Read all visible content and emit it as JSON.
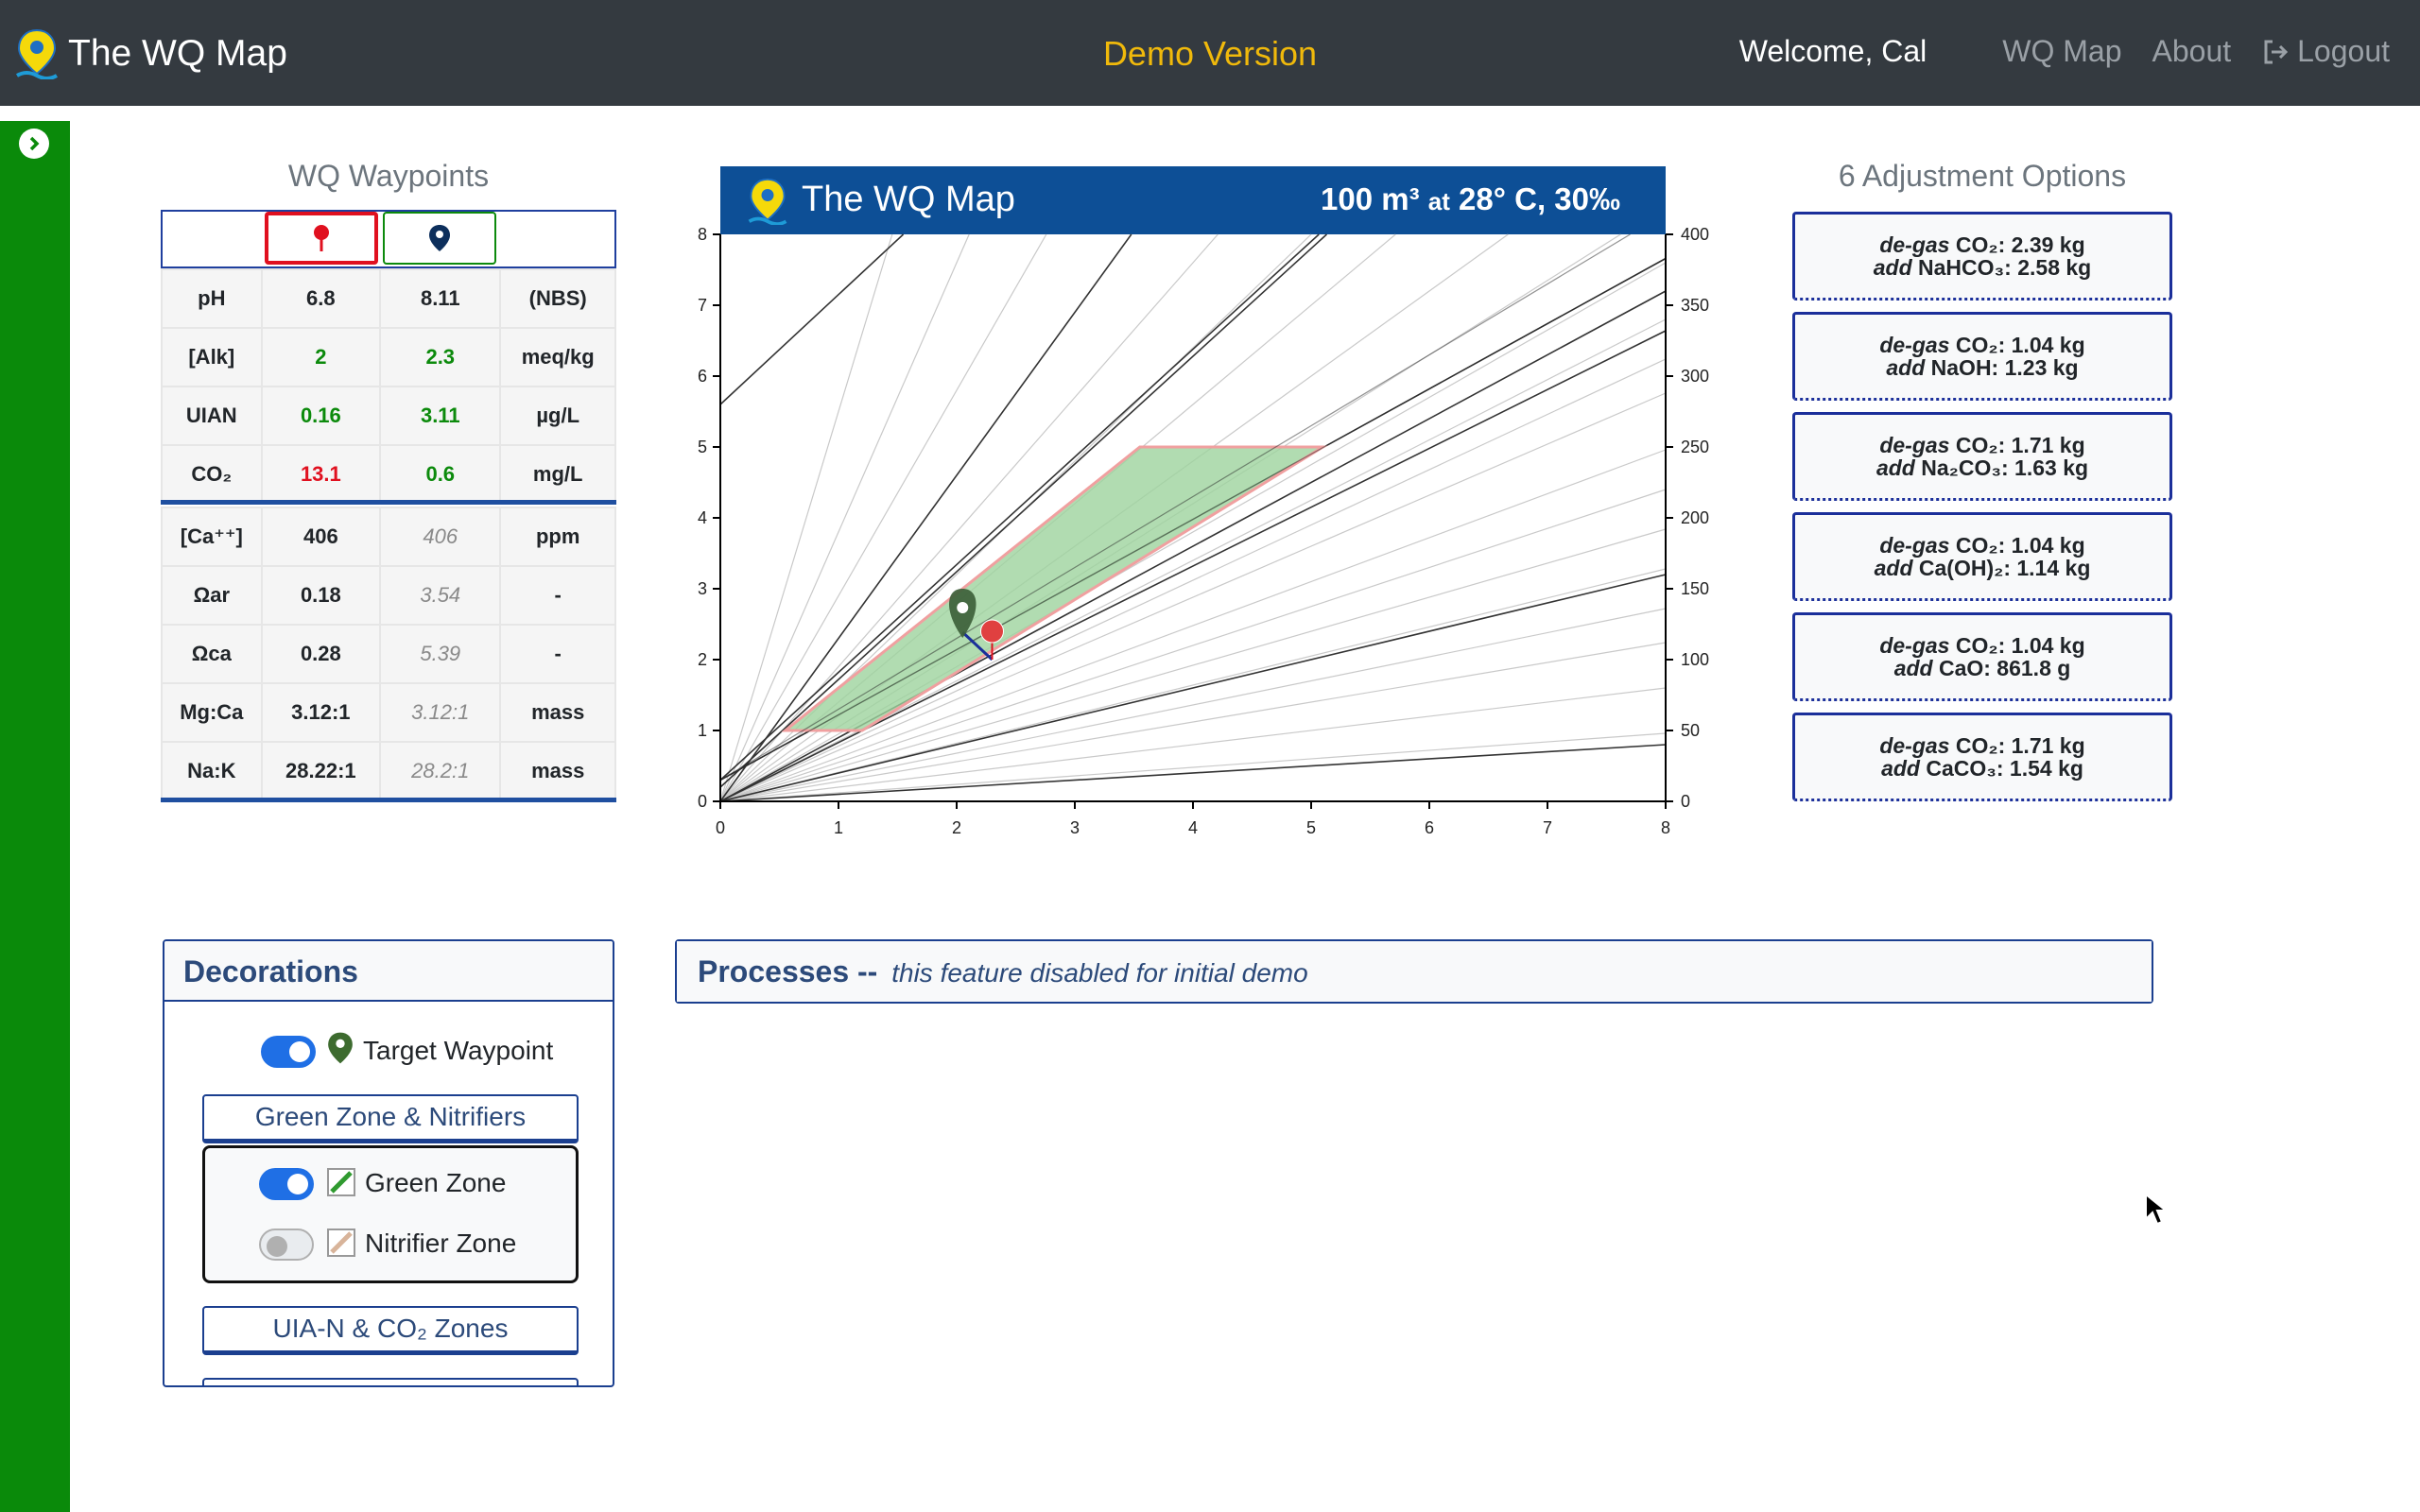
{
  "navbar": {
    "brand": "The WQ Map",
    "center": "Demo Version",
    "welcome": "Welcome, Cal",
    "links": [
      "WQ Map",
      "About",
      "Logout"
    ]
  },
  "waypoints": {
    "title": "WQ Waypoints",
    "rows": [
      {
        "label": "pH",
        "current": "6.8",
        "target": "8.11",
        "unit": "(NBS)"
      },
      {
        "label": "[Alk]",
        "current": "2",
        "target": "2.3",
        "unit": "meq/kg"
      },
      {
        "label": "UIAN",
        "current": "0.16",
        "target": "3.11",
        "unit": "µg/L"
      },
      {
        "label": "CO₂",
        "current": "13.1",
        "target": "0.6",
        "unit": "mg/L"
      },
      {
        "label": "[Ca⁺⁺]",
        "current": "406",
        "target": "406",
        "unit": "ppm"
      },
      {
        "label": "Ωar",
        "current": "0.18",
        "target": "3.54",
        "unit": "-"
      },
      {
        "label": "Ωca",
        "current": "0.28",
        "target": "5.39",
        "unit": "-"
      },
      {
        "label": "Mg:Ca",
        "current": "3.12:1",
        "target": "3.12:1",
        "unit": "mass"
      },
      {
        "label": "Na:K",
        "current": "28.22:1",
        "target": "28.2:1",
        "unit": "mass"
      }
    ]
  },
  "chart": {
    "title": "The WQ Map",
    "volume": "100 m³",
    "at": "at",
    "conditions": "28° C, 30‰",
    "x_ticks": [
      "0",
      "1",
      "2",
      "3",
      "4",
      "5",
      "6",
      "7",
      "8"
    ],
    "y_left_ticks": [
      "0",
      "1",
      "2",
      "3",
      "4",
      "5",
      "6",
      "7",
      "8"
    ],
    "y_right_ticks": [
      "0",
      "50",
      "100",
      "150",
      "200",
      "250",
      "300",
      "350",
      "400"
    ]
  },
  "chart_data": {
    "type": "scatter",
    "title": "The WQ Map",
    "xlabel": "",
    "ylabel": "",
    "xlim": [
      0,
      8
    ],
    "ylim": [
      0,
      8
    ],
    "y2lim": [
      0,
      400
    ],
    "green_zone": [
      [
        0.55,
        1.0
      ],
      [
        1.2,
        1.0
      ],
      [
        5.1,
        5.0
      ],
      [
        3.55,
        5.0
      ]
    ],
    "waypoints": [
      {
        "role": "current",
        "x": 2.3,
        "y": 2.4
      },
      {
        "role": "target",
        "x": 2.05,
        "y": 2.6
      }
    ]
  },
  "adjustments": {
    "title": "6 Adjustment Options",
    "options": [
      {
        "degas": "de-gas",
        "co2": "CO₂: 2.39 kg",
        "add": "add",
        "chem": "NaHCO₃: 2.58 kg"
      },
      {
        "degas": "de-gas",
        "co2": "CO₂: 1.04 kg",
        "add": "add",
        "chem": "NaOH: 1.23 kg"
      },
      {
        "degas": "de-gas",
        "co2": "CO₂: 1.71 kg",
        "add": "add",
        "chem": "Na₂CO₃: 1.63 kg"
      },
      {
        "degas": "de-gas",
        "co2": "CO₂: 1.04 kg",
        "add": "add",
        "chem": "Ca(OH)₂: 1.14 kg"
      },
      {
        "degas": "de-gas",
        "co2": "CO₂: 1.04 kg",
        "add": "add",
        "chem": "CaO: 861.8 g"
      },
      {
        "degas": "de-gas",
        "co2": "CO₂: 1.71 kg",
        "add": "add",
        "chem": "CaCO₃: 1.54 kg"
      }
    ]
  },
  "decorations": {
    "title": "Decorations",
    "target_waypoint": "Target Waypoint",
    "section1": "Green Zone & Nitrifiers",
    "green_zone": "Green Zone",
    "nitrifier_zone": "Nitrifier Zone",
    "section2": "UIA-N & CO₂ Zones",
    "target_on": true,
    "green_on": true,
    "nitrifier_on": false
  },
  "processes": {
    "title": "Processes --",
    "note": "this feature disabled for initial demo"
  },
  "colors": {
    "navbar": "#343a40",
    "accent": "#f0b90b",
    "sidebar": "#0a8a0a",
    "chart_header": "#0d4f96",
    "green_zone": "#9ed39e",
    "green_text": "#0c8a0c",
    "red_text": "#e0101f"
  }
}
